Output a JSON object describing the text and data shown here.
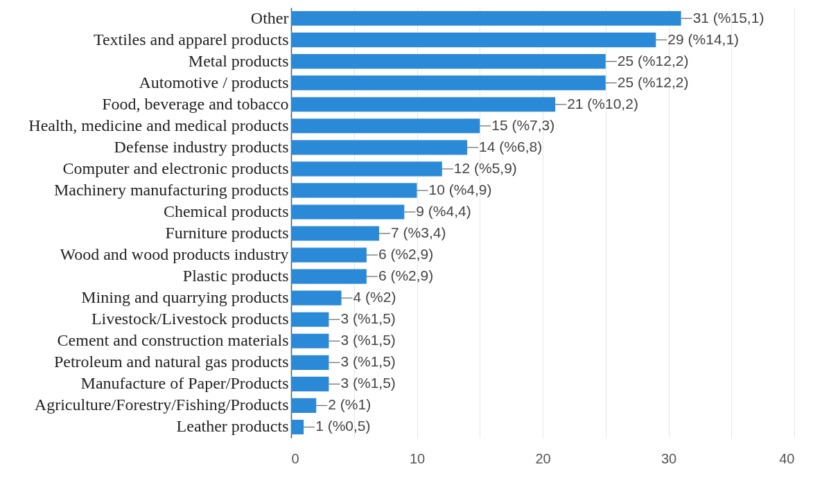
{
  "chart_data": {
    "type": "bar",
    "orientation": "horizontal",
    "categories": [
      "Other",
      "Textiles and apparel products",
      "Metal products",
      "Automotive / products",
      "Food, beverage and tobacco",
      "Health, medicine and medical products",
      "Defense industry products",
      "Computer and electronic products",
      "Machinery manufacturing products",
      "Chemical products",
      "Furniture products",
      "Wood and wood products industry",
      "Plastic products",
      "Mining and quarrying products",
      "Livestock/Livestock products",
      "Cement and construction materials",
      "Petroleum and natural gas products",
      "Manufacture of Paper/Products",
      "Agriculture/Forestry/Fishing/Products",
      "Leather products"
    ],
    "values": [
      31,
      29,
      25,
      25,
      21,
      15,
      14,
      12,
      10,
      9,
      7,
      6,
      6,
      4,
      3,
      3,
      3,
      3,
      2,
      1
    ],
    "value_labels": [
      "31 (%15,1)",
      "29 (%14,1)",
      "25 (%12,2)",
      "25 (%12,2)",
      "21 (%10,2)",
      "15 (%7,3)",
      "14 (%6,8)",
      "12 (%5,9)",
      "10 (%4,9)",
      "9 (%4,4)",
      "7 (%3,4)",
      "6 (%2,9)",
      "6 (%2,9)",
      "4 (%2)",
      "3 (%1,5)",
      "3 (%1,5)",
      "3 (%1,5)",
      "3 (%1,5)",
      "2 (%1)",
      "1 (%0,5)"
    ],
    "color": "#2b8ad8",
    "xlim": [
      0,
      40
    ],
    "xticks": [
      0,
      {
        "value": 5,
        "label": null
      },
      10,
      {
        "value": 15,
        "label": null
      },
      20,
      {
        "value": 25,
        "label": null
      },
      30,
      {
        "value": 35,
        "label": null
      },
      40
    ],
    "grid": "x"
  }
}
